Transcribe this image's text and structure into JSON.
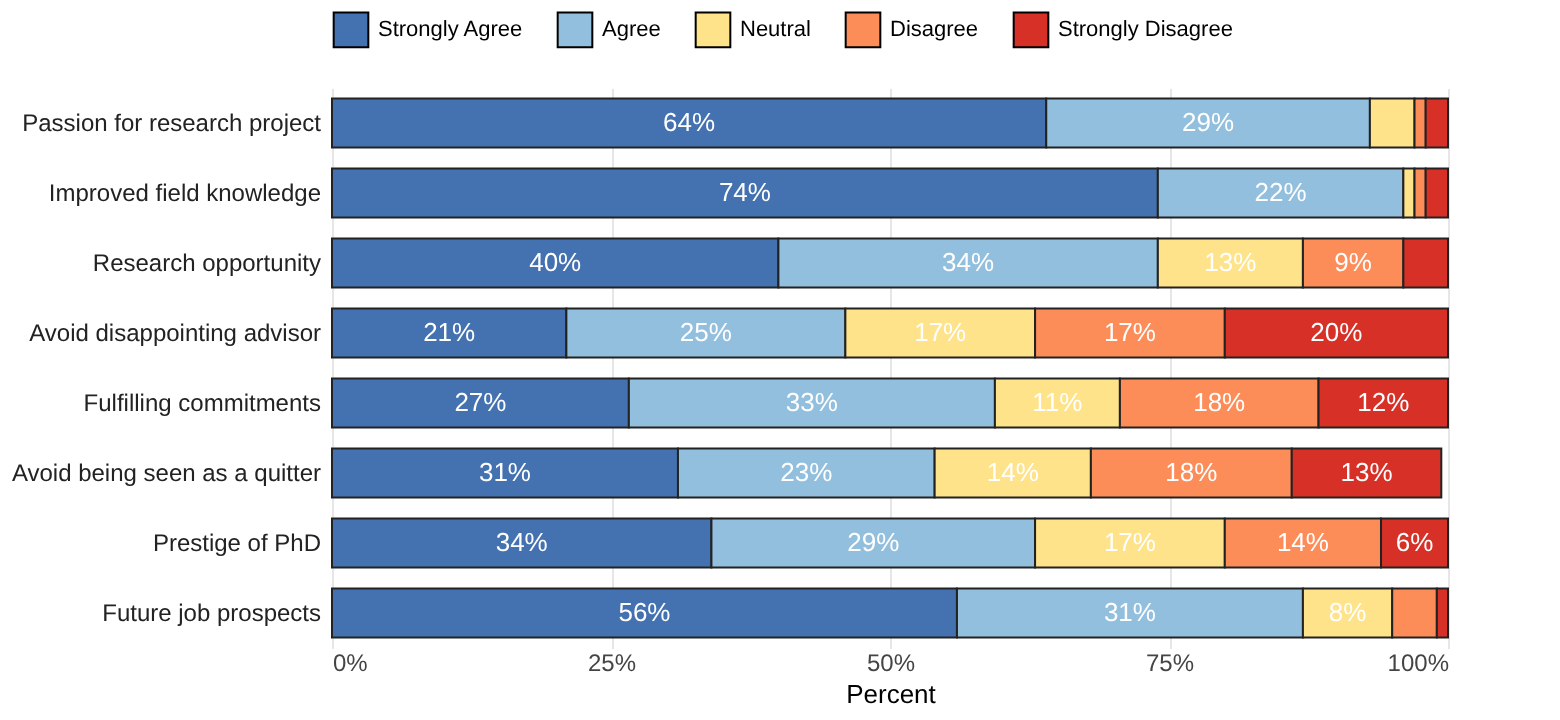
{
  "chart_data": {
    "type": "bar",
    "orientation": "horizontal",
    "stacked": true,
    "categories": [
      "Passion for research project",
      "Improved field knowledge",
      "Research opportunity",
      "Avoid disappointing advisor",
      "Fulfilling commitments",
      "Avoid being seen as a quitter",
      "Prestige of PhD",
      "Future job prospects"
    ],
    "series": [
      {
        "name": "Strongly Agree",
        "color": "#4472b0",
        "values": [
          64,
          74,
          40,
          21,
          26.6,
          31,
          34,
          56
        ],
        "value_labels": [
          "64%",
          "74%",
          "40%",
          "21%",
          "27%",
          "31%",
          "34%",
          "56%"
        ]
      },
      {
        "name": "Agree",
        "color": "#92bfdd",
        "values": [
          29,
          22,
          34,
          25,
          32.8,
          23,
          29,
          31
        ],
        "value_labels": [
          "29%",
          "22%",
          "34%",
          "25%",
          "33%",
          "23%",
          "29%",
          "31%"
        ]
      },
      {
        "name": "Neutral",
        "color": "#fee38b",
        "values": [
          4,
          1,
          13,
          17,
          11.2,
          14,
          17,
          8
        ],
        "value_labels": [
          null,
          null,
          "13%",
          "17%",
          "11%",
          "14%",
          "17%",
          "8%"
        ]
      },
      {
        "name": "Disagree",
        "color": "#fc8d59",
        "values": [
          1,
          1,
          9,
          17,
          17.8,
          18,
          14,
          4
        ],
        "value_labels": [
          null,
          null,
          "9%",
          "17%",
          "18%",
          "18%",
          "14%",
          null
        ]
      },
      {
        "name": "Strongly Disagree",
        "color": "#d73027",
        "values": [
          2,
          2,
          4,
          20,
          11.6,
          13.4,
          6,
          1
        ],
        "value_labels": [
          null,
          null,
          null,
          "20%",
          "12%",
          "13%",
          "6%",
          null
        ]
      }
    ],
    "xlim": [
      0,
      100
    ],
    "xticks": [
      {
        "value": 0,
        "label": "0%"
      },
      {
        "value": 25,
        "label": "25%"
      },
      {
        "value": 50,
        "label": "50%"
      },
      {
        "value": 75,
        "label": "75%"
      },
      {
        "value": 100,
        "label": "100%"
      }
    ],
    "xlabel": "Percent",
    "grid": "x",
    "legend": "top"
  }
}
